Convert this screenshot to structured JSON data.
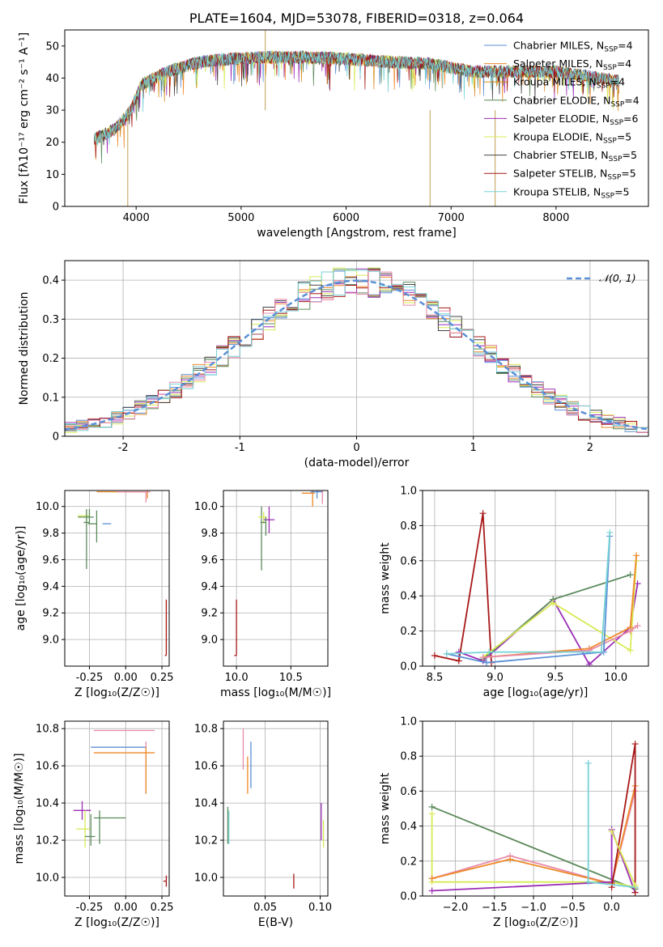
{
  "palette": [
    "#5b8fd6",
    "#ee8a2a",
    "#d68a19",
    "#5c8a5c",
    "#9c2fb6",
    "#d8ea55",
    "#444444",
    "#a81818",
    "#e88aa9",
    "#77d2d6",
    "#d07a1a",
    "#2e9a3a"
  ],
  "chart_data": [
    {
      "id": "spectrum",
      "type": "line",
      "title": "PLATE=1604, MJD=53078, FIBERID=0318, z=0.064",
      "xlabel": "wavelength [Angstrom, rest frame]",
      "ylabel": "Flux [fλ10⁻¹⁷ erg cm⁻² s⁻¹ A⁻¹]",
      "xlim": [
        3320,
        8880
      ],
      "ylim": [
        0,
        55
      ],
      "xticks": [
        4000,
        5000,
        6000,
        7000,
        8000
      ],
      "yticks": [
        0,
        10,
        20,
        30,
        40,
        50
      ],
      "continuum": {
        "x": [
          3600,
          3800,
          3950,
          4050,
          4300,
          4600,
          4900,
          5200,
          5600,
          6000,
          6400,
          6800,
          7200,
          7600,
          8000,
          8400,
          8600
        ],
        "y": [
          21,
          24,
          30,
          38,
          42,
          45,
          46,
          46.5,
          46.5,
          46,
          45,
          44.5,
          42,
          42,
          42,
          40,
          39
        ]
      },
      "legend": [
        {
          "label": "Chabrier MILES, N",
          "sub": "SSP",
          "tail": "=4",
          "color": "#5b8fd6"
        },
        {
          "label": "Salpeter MILES, N",
          "sub": "SSP",
          "tail": "=4",
          "color": "#ee8a2a"
        },
        {
          "label": "Kroupa MILES, N",
          "sub": "SSP",
          "tail": "=4",
          "color": "#d68a19"
        },
        {
          "label": "Chabrier ELODIE, N",
          "sub": "SSP",
          "tail": "=4",
          "color": "#5c8a5c"
        },
        {
          "label": "Salpeter ELODIE, N",
          "sub": "SSP",
          "tail": "=6",
          "color": "#9c2fb6"
        },
        {
          "label": "Kroupa ELODIE, N",
          "sub": "SSP",
          "tail": "=5",
          "color": "#d8ea55"
        },
        {
          "label": "Chabrier STELIB, N",
          "sub": "SSP",
          "tail": "=5",
          "color": "#444444"
        },
        {
          "label": "Salpeter STELIB, N",
          "sub": "SSP",
          "tail": "=5",
          "color": "#a81818"
        },
        {
          "label": "Kroupa STELIB, N",
          "sub": "SSP",
          "tail": "=5",
          "color": "#77d2d6"
        }
      ]
    },
    {
      "id": "residuals",
      "type": "area",
      "xlabel": "(data-model)/error",
      "ylabel": "Normed distribution",
      "xlim": [
        -2.5,
        2.5
      ],
      "ylim": [
        0,
        0.45
      ],
      "xticks": [
        -2,
        -1,
        0,
        1,
        2
      ],
      "yticks": [
        0.0,
        0.1,
        0.2,
        0.3,
        0.4
      ],
      "legend_label": "𝒩(0, 1)",
      "gauss_color": "#5b8fd6",
      "hist_colors": [
        "#5b8fd6",
        "#ee8a2a",
        "#5c8a5c",
        "#9c2fb6",
        "#d8ea55",
        "#444444",
        "#a81818",
        "#e88aa9",
        "#77d2d6"
      ]
    },
    {
      "id": "age-vs-z",
      "type": "scatter",
      "xlabel": "Z [log₁₀(Z/Z☉)]",
      "ylabel": "age  [log₁₀(age/yr)]",
      "xlim": [
        -0.42,
        0.3
      ],
      "ylim": [
        8.8,
        10.12
      ],
      "xticks": [
        "-0.25",
        "0.00",
        "0.25"
      ],
      "xtickvals": [
        -0.25,
        0,
        0.25
      ],
      "yticks": [
        "9.0",
        "9.2",
        "9.4",
        "9.6",
        "9.8",
        "10.0"
      ],
      "ytickvals": [
        9.0,
        9.2,
        9.4,
        9.6,
        9.8,
        10.0
      ],
      "points": [
        {
          "x": -0.27,
          "y": 9.93,
          "xerr": [
            0.06,
            0.02
          ],
          "yerr": [
            0.06,
            0.04
          ],
          "color": "#d8ea55"
        },
        {
          "x": -0.25,
          "y": 9.92,
          "xerr": [
            0.08,
            0.03
          ],
          "yerr": [
            0.05,
            0.06
          ],
          "color": "#5c8a5c"
        },
        {
          "x": -0.27,
          "y": 9.88,
          "xerr": [
            0.02,
            0.02
          ],
          "yerr": [
            0.35,
            0.1
          ],
          "color": "#5c8a5c"
        },
        {
          "x": -0.2,
          "y": 9.87,
          "xerr": [
            0.06,
            0.0
          ],
          "yerr": [
            0.14,
            0.1
          ],
          "color": "#5c8a5c"
        },
        {
          "x": -0.1,
          "y": 9.87,
          "xerr": [
            0.06,
            0.0
          ],
          "yerr": [
            0.0,
            0.0
          ],
          "color": "#5b8fd6"
        },
        {
          "x": 0.15,
          "y": 10.11,
          "xerr": [
            0.35,
            0.0
          ],
          "yerr": [
            0.05,
            0.01
          ],
          "color": "#ee8a2a"
        },
        {
          "x": 0.14,
          "y": 10.11,
          "xerr": [
            0.2,
            0.03
          ],
          "yerr": [
            0.08,
            0.0
          ],
          "color": "#e88aa9"
        },
        {
          "x": 0.28,
          "y": 8.88,
          "xerr": [
            0.01,
            0.0
          ],
          "yerr": [
            0.0,
            0.42
          ],
          "color": "#a81818"
        }
      ]
    },
    {
      "id": "age-vs-mass",
      "type": "scatter",
      "xlabel": "mass [log₁₀(M/M☉)]",
      "ylabel": "",
      "xlim": [
        9.88,
        10.84
      ],
      "ylim": [
        8.8,
        10.12
      ],
      "xticks": [
        "10.0",
        "10.5"
      ],
      "xtickvals": [
        10.0,
        10.5
      ],
      "yticks": [
        "9.0",
        "9.2",
        "9.4",
        "9.6",
        "9.8",
        "10.0"
      ],
      "ytickvals": [
        9.0,
        9.2,
        9.4,
        9.6,
        9.8,
        10.0
      ],
      "points": [
        {
          "x": 10.23,
          "y": 9.92,
          "xerr": [
            0.0,
            0.0
          ],
          "yerr": [
            0.4,
            0.08
          ],
          "color": "#5c8a5c"
        },
        {
          "x": 10.25,
          "y": 9.92,
          "xerr": [
            0.05,
            0.03
          ],
          "yerr": [
            0.05,
            0.04
          ],
          "color": "#d8ea55"
        },
        {
          "x": 10.3,
          "y": 9.9,
          "xerr": [
            0.05,
            0.05
          ],
          "yerr": [
            0.1,
            0.1
          ],
          "color": "#9c2fb6"
        },
        {
          "x": 10.27,
          "y": 9.88,
          "xerr": [
            0.05,
            0.0
          ],
          "yerr": [
            0.1,
            0.04
          ],
          "color": "#5c8a5c"
        },
        {
          "x": 10.7,
          "y": 10.1,
          "xerr": [
            0.1,
            0.02
          ],
          "yerr": [
            0.1,
            0.03
          ],
          "color": "#ee8a2a"
        },
        {
          "x": 10.74,
          "y": 10.11,
          "xerr": [
            0.06,
            0.05
          ],
          "yerr": [
            0.05,
            0.02
          ],
          "color": "#5b8fd6"
        },
        {
          "x": 10.79,
          "y": 10.12,
          "xerr": [
            0.05,
            0.0
          ],
          "yerr": [
            0.1,
            0.0
          ],
          "color": "#e88aa9"
        },
        {
          "x": 10.0,
          "y": 8.88,
          "xerr": [
            0.02,
            0.0
          ],
          "yerr": [
            0.0,
            0.42
          ],
          "color": "#a81818"
        }
      ]
    },
    {
      "id": "weight-vs-age",
      "type": "line",
      "xlabel": "age  [log₁₀(age/yr)]",
      "ylabel": "mass weight",
      "xlim": [
        8.4,
        10.27
      ],
      "ylim": [
        0.0,
        1.0
      ],
      "xticks": [
        "8.5",
        "9.0",
        "9.5",
        "10.0"
      ],
      "xtickvals": [
        8.5,
        9.0,
        9.5,
        10.0
      ],
      "yticks": [
        "0.0",
        "0.2",
        "0.4",
        "0.6",
        "0.8",
        "1.0"
      ],
      "ytickvals": [
        0,
        0.2,
        0.4,
        0.6,
        0.8,
        1.0
      ],
      "series": [
        {
          "color": "#a81818",
          "x": [
            8.5,
            8.7,
            8.9,
            8.97
          ],
          "y": [
            0.06,
            0.03,
            0.87,
            0.02
          ]
        },
        {
          "color": "#9c2fb6",
          "x": [
            8.7,
            8.9,
            9.48,
            9.78,
            10.12,
            10.18
          ],
          "y": [
            0.08,
            0.03,
            0.38,
            0.01,
            0.22,
            0.47
          ]
        },
        {
          "color": "#5c8a5c",
          "x": [
            8.9,
            9.48,
            10.12
          ],
          "y": [
            0.04,
            0.38,
            0.52
          ]
        },
        {
          "color": "#d8ea55",
          "x": [
            8.9,
            9.48,
            10.12,
            10.17
          ],
          "y": [
            0.05,
            0.36,
            0.09,
            0.6
          ]
        },
        {
          "color": "#ee8a2a",
          "x": [
            8.9,
            9.78,
            10.12,
            10.17
          ],
          "y": [
            0.05,
            0.1,
            0.22,
            0.63
          ]
        },
        {
          "color": "#e88aa9",
          "x": [
            8.9,
            9.78,
            10.12,
            10.18
          ],
          "y": [
            0.05,
            0.09,
            0.2,
            0.23
          ]
        },
        {
          "color": "#5b8fd6",
          "x": [
            8.6,
            8.93,
            9.9,
            9.95
          ],
          "y": [
            0.07,
            0.02,
            0.08,
            0.74
          ]
        },
        {
          "color": "#77d2d6",
          "x": [
            8.6,
            8.95,
            9.88,
            9.95
          ],
          "y": [
            0.07,
            0.08,
            0.08,
            0.76
          ]
        }
      ]
    },
    {
      "id": "mass-vs-z",
      "type": "scatter",
      "xlabel": "Z [log₁₀(Z/Z☉)]",
      "ylabel": "mass [log₁₀(M/M☉)]",
      "xlim": [
        -0.42,
        0.3
      ],
      "ylim": [
        9.9,
        10.84
      ],
      "xticks": [
        "-0.25",
        "0.00",
        "0.25"
      ],
      "xtickvals": [
        -0.25,
        0,
        0.25
      ],
      "yticks": [
        "10.0",
        "10.2",
        "10.4",
        "10.6",
        "10.8"
      ],
      "ytickvals": [
        10.0,
        10.2,
        10.4,
        10.6,
        10.8
      ],
      "points": [
        {
          "x": 0.0,
          "y": 10.79,
          "xerr": [
            0.22,
            0.2
          ],
          "yerr": [
            0,
            0
          ],
          "color": "#e88aa9"
        },
        {
          "x": -0.0,
          "y": 10.7,
          "xerr": [
            0.24,
            0.14
          ],
          "yerr": [
            0,
            0
          ],
          "color": "#5b8fd6"
        },
        {
          "x": 0.0,
          "y": 10.67,
          "xerr": [
            0.22,
            0.2
          ],
          "yerr": [
            0,
            0
          ],
          "color": "#ee8a2a"
        },
        {
          "x": 0.14,
          "y": 10.59,
          "xerr": [
            0.0,
            0.0
          ],
          "yerr": [
            0.14,
            0.14
          ],
          "color": "#e88aa9"
        },
        {
          "x": 0.14,
          "y": 10.6,
          "xerr": [
            0.0,
            0.0
          ],
          "yerr": [
            0.15,
            0.1
          ],
          "color": "#ee8a2a"
        },
        {
          "x": -0.3,
          "y": 10.36,
          "xerr": [
            0.06,
            0.06
          ],
          "yerr": [
            0.05,
            0.05
          ],
          "color": "#9c2fb6"
        },
        {
          "x": -0.28,
          "y": 10.26,
          "xerr": [
            0.06,
            0.04
          ],
          "yerr": [
            0.1,
            0.1
          ],
          "color": "#d8ea55"
        },
        {
          "x": -0.24,
          "y": 10.22,
          "xerr": [
            0.04,
            0.03
          ],
          "yerr": [
            0.05,
            0.12
          ],
          "color": "#5c8a5c"
        },
        {
          "x": -0.18,
          "y": 10.32,
          "xerr": [
            0.04,
            0.18
          ],
          "yerr": [
            0.14,
            0.04
          ],
          "color": "#5c8a5c"
        },
        {
          "x": 0.28,
          "y": 9.98,
          "xerr": [
            0.02,
            0.0
          ],
          "yerr": [
            0.03,
            0.03
          ],
          "color": "#a81818"
        }
      ]
    },
    {
      "id": "mass-vs-ebv",
      "type": "scatter",
      "xlabel": "E(B-V)",
      "ylabel": "",
      "xlim": [
        0.012,
        0.107
      ],
      "ylim": [
        9.9,
        10.84
      ],
      "xticks": [
        "0.05",
        "0.10"
      ],
      "xtickvals": [
        0.05,
        0.1
      ],
      "yticks": [
        "10.0",
        "10.2",
        "10.4",
        "10.6",
        "10.8"
      ],
      "ytickvals": [
        10.0,
        10.2,
        10.4,
        10.6,
        10.8
      ],
      "points": [
        {
          "x": 0.016,
          "y": 10.28,
          "yerr": [
            0.1,
            0.1
          ],
          "color": "#5c8a5c"
        },
        {
          "x": 0.017,
          "y": 10.28,
          "yerr": [
            0.1,
            0.08
          ],
          "color": "#77d2d6"
        },
        {
          "x": 0.03,
          "y": 10.68,
          "yerr": [
            0.1,
            0.12
          ],
          "color": "#e88aa9"
        },
        {
          "x": 0.034,
          "y": 10.55,
          "yerr": [
            0.1,
            0.1
          ],
          "color": "#ee8a2a"
        },
        {
          "x": 0.037,
          "y": 10.6,
          "yerr": [
            0.12,
            0.13
          ],
          "color": "#5b8fd6"
        },
        {
          "x": 0.076,
          "y": 9.98,
          "yerr": [
            0.04,
            0.04
          ],
          "color": "#a81818"
        },
        {
          "x": 0.101,
          "y": 10.3,
          "yerr": [
            0.1,
            0.1
          ],
          "color": "#9c2fb6"
        },
        {
          "x": 0.103,
          "y": 10.24,
          "yerr": [
            0.08,
            0.07
          ],
          "color": "#d8ea55"
        }
      ]
    },
    {
      "id": "weight-vs-z",
      "type": "line",
      "xlabel": "Z [log₁₀(Z/Z☉)]",
      "ylabel": "mass weight",
      "xlim": [
        -2.42,
        0.47
      ],
      "ylim": [
        0.0,
        1.0
      ],
      "xticks": [
        "−2.0",
        "−1.5",
        "−1.0",
        "−0.5",
        "0.0"
      ],
      "xtickvals": [
        -2.0,
        -1.5,
        -1.0,
        -0.5,
        0.0
      ],
      "yticks": [
        "0.0",
        "0.2",
        "0.4",
        "0.6",
        "0.8",
        "1.0"
      ],
      "ytickvals": [
        0,
        0.2,
        0.4,
        0.6,
        0.8,
        1.0
      ],
      "series": [
        {
          "color": "#5c8a5c",
          "x": [
            -2.3,
            0.3
          ],
          "y": [
            0.51,
            0.04
          ]
        },
        {
          "color": "#d8ea55",
          "x": [
            -2.3,
            -2.3,
            -0.0,
            0.3
          ],
          "y": [
            0.47,
            0.08,
            0.08,
            0.05
          ]
        },
        {
          "color": "#e88aa9",
          "x": [
            -2.3,
            -1.3,
            -0.0,
            0.3
          ],
          "y": [
            0.1,
            0.23,
            0.07,
            0.6
          ]
        },
        {
          "color": "#ee8a2a",
          "x": [
            -2.3,
            -1.3,
            -0.0,
            0.3
          ],
          "y": [
            0.1,
            0.21,
            0.07,
            0.63
          ]
        },
        {
          "color": "#9c2fb6",
          "x": [
            -2.3,
            0.0,
            0.0,
            0.3
          ],
          "y": [
            0.03,
            0.08,
            0.38,
            0.02
          ]
        },
        {
          "color": "#a81818",
          "x": [
            -0.0,
            0.3,
            0.3
          ],
          "y": [
            0.05,
            0.87,
            0.02
          ]
        },
        {
          "color": "#77d2d6",
          "x": [
            -0.3,
            -0.3,
            0.3
          ],
          "y": [
            0.76,
            0.08,
            0.05
          ]
        },
        {
          "color": "#d8ea55",
          "x": [
            -0.0,
            0.3
          ],
          "y": [
            0.37,
            0.06
          ]
        }
      ]
    }
  ]
}
